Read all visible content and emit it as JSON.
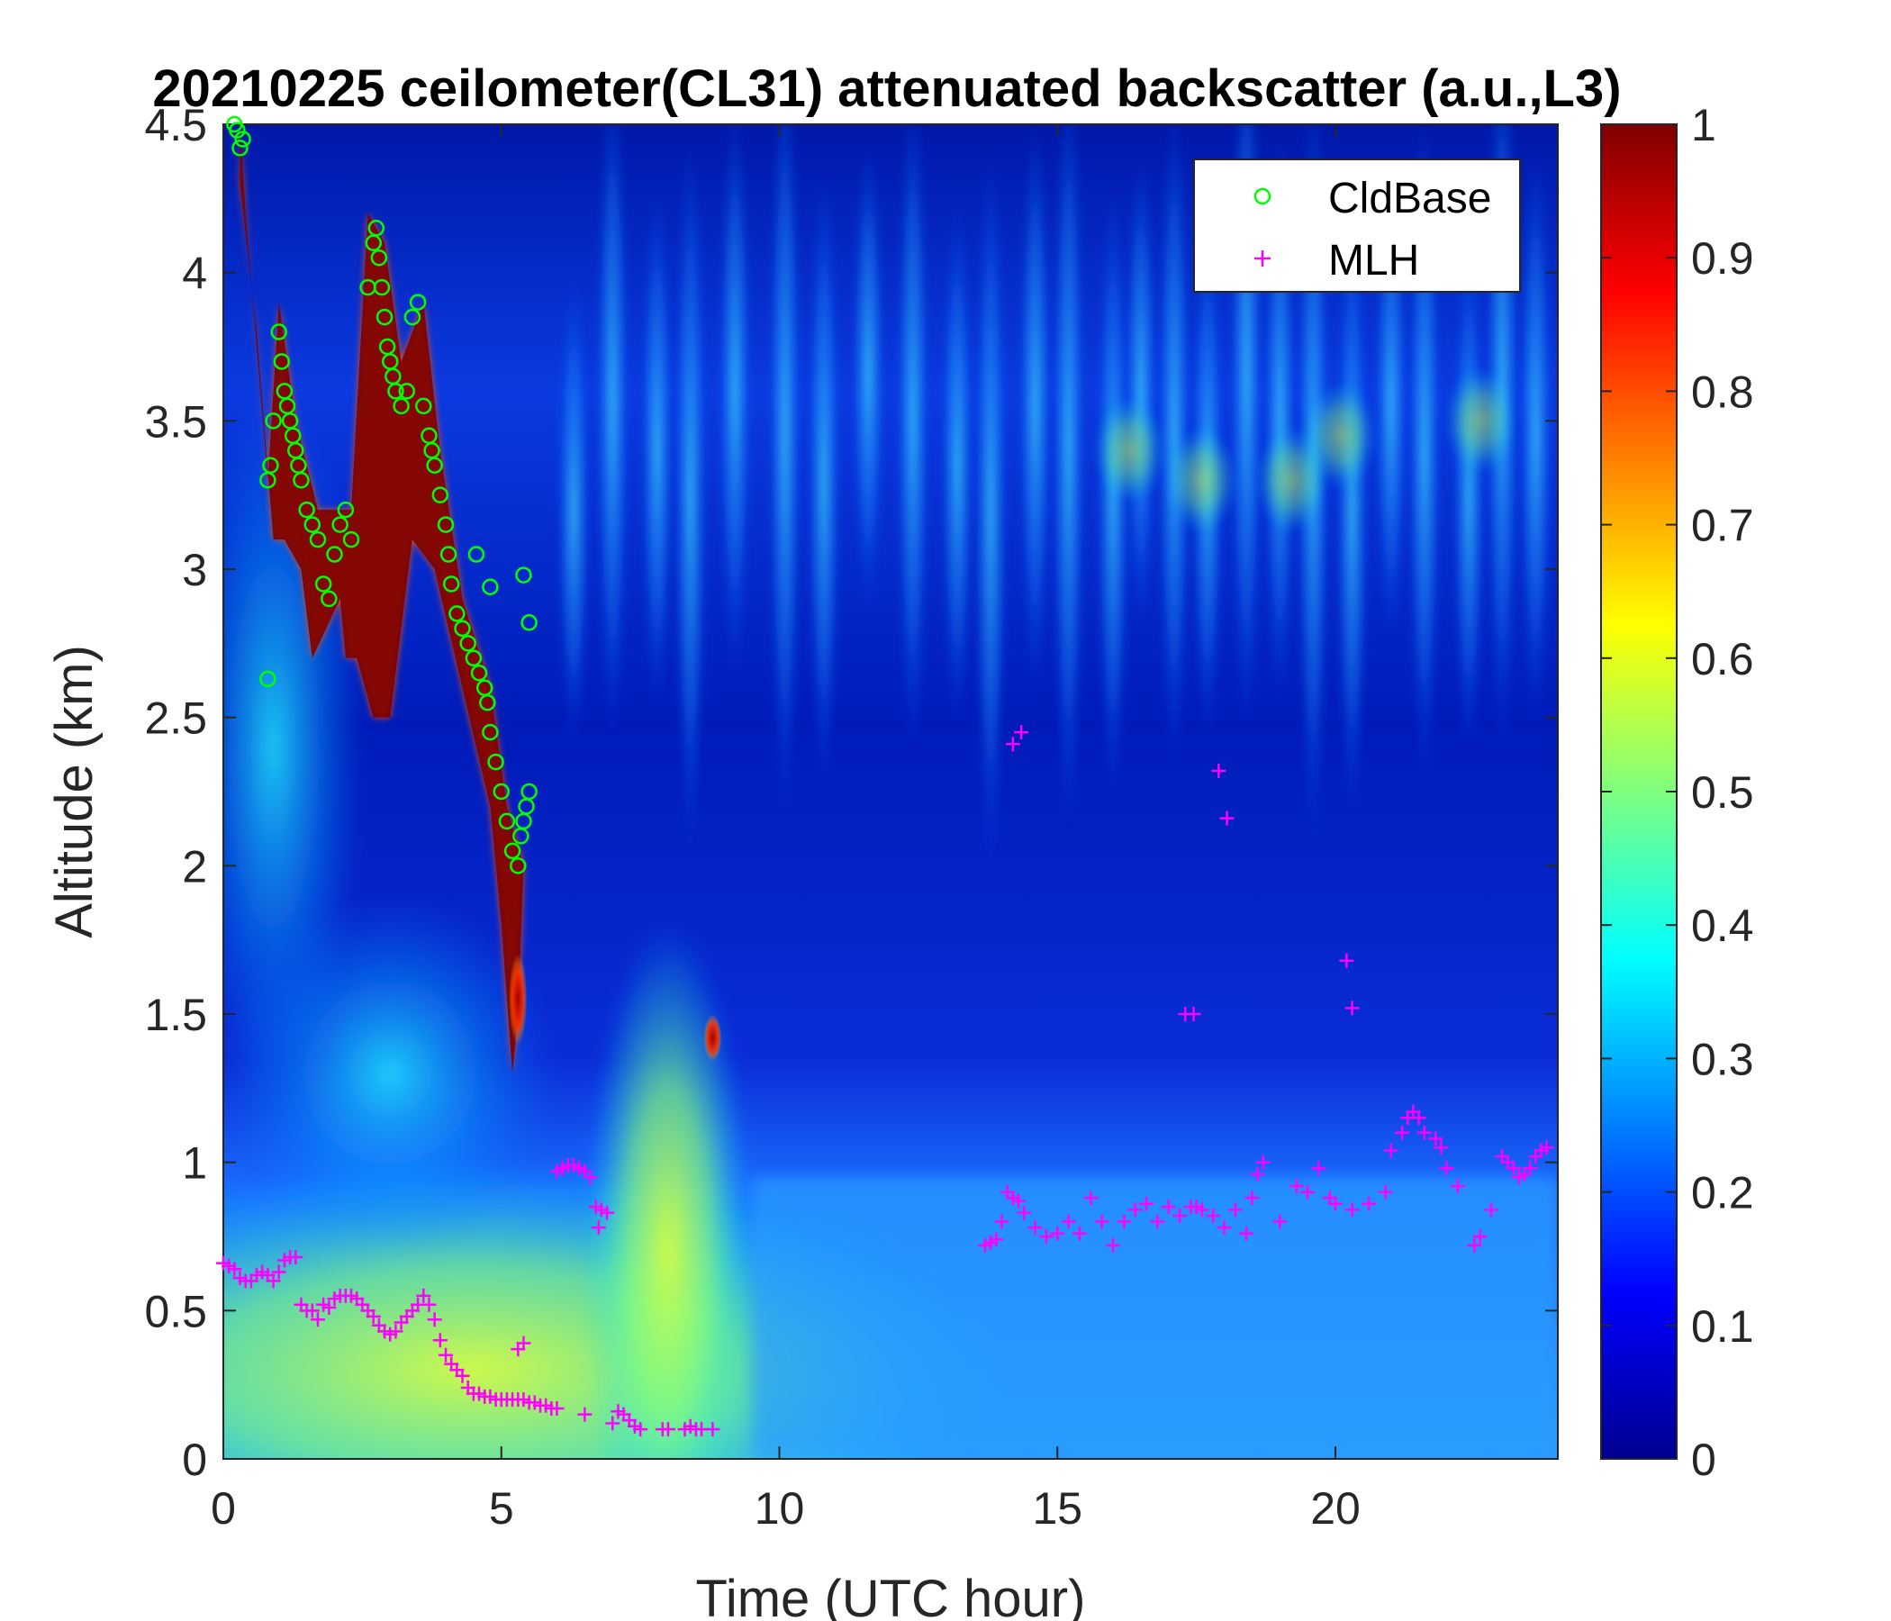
{
  "chart_data": {
    "type": "heatmap",
    "title": "20210225 ceilometer(CL31) attenuated backscatter (a.u.,L3)",
    "xlabel": "Time (UTC hour)",
    "ylabel": "Altitude (km)",
    "xlim": [
      0,
      24
    ],
    "ylim": [
      0,
      4.5
    ],
    "xticks": [
      "0",
      "5",
      "10",
      "15",
      "20"
    ],
    "yticks": [
      "0",
      "0.5",
      "1",
      "1.5",
      "2",
      "2.5",
      "3",
      "3.5",
      "4",
      "4.5"
    ],
    "colorbar": {
      "colormap": "jet",
      "range": [
        0,
        1
      ],
      "ticks": [
        "0",
        "0.1",
        "0.2",
        "0.3",
        "0.4",
        "0.5",
        "0.6",
        "0.7",
        "0.8",
        "0.9",
        "1"
      ]
    },
    "legend": {
      "placement": "top-right",
      "entries": [
        {
          "label": "CldBase",
          "marker": "circle",
          "color": "#00ff00"
        },
        {
          "label": "MLH",
          "marker": "plus",
          "color": "#ff00ff"
        }
      ]
    },
    "series": [
      {
        "name": "CldBase",
        "marker": "circle",
        "color": "#00ff00",
        "x": [
          0.2,
          0.25,
          0.3,
          0.35,
          0.8,
          0.85,
          0.9,
          1.0,
          1.05,
          1.1,
          1.15,
          1.2,
          1.25,
          1.3,
          1.35,
          1.4,
          1.5,
          1.6,
          1.7,
          1.8,
          1.9,
          2.0,
          2.1,
          2.2,
          2.3,
          2.6,
          2.7,
          2.75,
          2.8,
          2.85,
          2.9,
          2.95,
          3.0,
          3.05,
          3.1,
          3.2,
          3.3,
          3.4,
          3.5,
          3.6,
          3.7,
          3.75,
          3.8,
          3.9,
          4.0,
          4.05,
          4.1,
          4.2,
          4.3,
          4.4,
          4.5,
          4.6,
          4.7,
          4.75,
          4.8,
          4.9,
          5.0,
          5.1,
          5.2,
          5.3,
          5.35,
          5.4,
          5.45,
          5.5,
          0.8,
          4.55,
          4.8,
          5.4,
          5.5
        ],
        "y": [
          4.5,
          4.48,
          4.42,
          4.45,
          3.3,
          3.35,
          3.5,
          3.8,
          3.7,
          3.6,
          3.55,
          3.5,
          3.45,
          3.4,
          3.35,
          3.3,
          3.2,
          3.15,
          3.1,
          2.95,
          2.9,
          3.05,
          3.15,
          3.2,
          3.1,
          3.95,
          4.1,
          4.15,
          4.05,
          3.95,
          3.85,
          3.75,
          3.7,
          3.65,
          3.6,
          3.55,
          3.6,
          3.85,
          3.9,
          3.55,
          3.45,
          3.4,
          3.35,
          3.25,
          3.15,
          3.05,
          2.95,
          2.85,
          2.8,
          2.75,
          2.7,
          2.65,
          2.6,
          2.55,
          2.45,
          2.35,
          2.25,
          2.15,
          2.05,
          2.0,
          2.1,
          2.15,
          2.2,
          2.25,
          2.63,
          3.05,
          2.94,
          2.98,
          2.82
        ]
      },
      {
        "name": "MLH",
        "marker": "plus",
        "color": "#ff00ff",
        "x": [
          0.0,
          0.1,
          0.2,
          0.3,
          0.4,
          0.5,
          0.6,
          0.7,
          0.8,
          0.9,
          1.0,
          1.1,
          1.2,
          1.3,
          1.4,
          1.5,
          1.6,
          1.7,
          1.8,
          1.9,
          2.0,
          2.1,
          2.2,
          2.3,
          2.4,
          2.5,
          2.6,
          2.7,
          2.8,
          2.9,
          3.0,
          3.1,
          3.2,
          3.3,
          3.4,
          3.5,
          3.6,
          3.7,
          3.8,
          3.9,
          4.0,
          4.1,
          4.2,
          4.3,
          4.4,
          4.5,
          4.6,
          4.7,
          4.8,
          4.9,
          5.0,
          5.1,
          5.2,
          5.3,
          5.4,
          5.5,
          5.6,
          5.7,
          5.8,
          5.9,
          6.0,
          6.5,
          7.0,
          7.1,
          7.2,
          7.3,
          7.4,
          7.5,
          7.9,
          8.0,
          8.3,
          8.4,
          8.5,
          8.6,
          8.8,
          5.3,
          5.4,
          6.0,
          6.1,
          6.2,
          6.3,
          6.4,
          6.5,
          6.6,
          6.7,
          6.8,
          6.9,
          6.75,
          13.7,
          13.8,
          13.9,
          14.0,
          14.1,
          14.2,
          14.3,
          14.4,
          14.6,
          14.8,
          15.0,
          15.2,
          15.4,
          15.6,
          15.8,
          16.0,
          16.2,
          16.4,
          16.6,
          16.8,
          17.0,
          17.2,
          17.4,
          17.5,
          17.6,
          17.8,
          18.0,
          18.2,
          18.4,
          18.5,
          18.6,
          18.7,
          19.0,
          19.3,
          19.5,
          19.7,
          19.9,
          20.0,
          20.3,
          20.6,
          20.9,
          21.0,
          21.2,
          21.3,
          21.4,
          21.5,
          21.6,
          21.8,
          21.9,
          22.0,
          22.2,
          22.5,
          22.6,
          22.8,
          23.0,
          23.1,
          23.2,
          23.3,
          23.4,
          23.5,
          23.6,
          23.7,
          23.8,
          14.2,
          14.35,
          17.3,
          17.45,
          17.9,
          18.05,
          20.2,
          20.3
        ],
        "y": [
          0.66,
          0.65,
          0.64,
          0.61,
          0.6,
          0.6,
          0.62,
          0.63,
          0.62,
          0.6,
          0.63,
          0.67,
          0.68,
          0.68,
          0.52,
          0.5,
          0.5,
          0.47,
          0.52,
          0.51,
          0.54,
          0.55,
          0.55,
          0.55,
          0.54,
          0.52,
          0.5,
          0.48,
          0.45,
          0.43,
          0.42,
          0.43,
          0.46,
          0.48,
          0.5,
          0.52,
          0.55,
          0.52,
          0.47,
          0.4,
          0.35,
          0.32,
          0.3,
          0.28,
          0.24,
          0.22,
          0.22,
          0.21,
          0.21,
          0.2,
          0.2,
          0.2,
          0.2,
          0.2,
          0.2,
          0.19,
          0.19,
          0.18,
          0.18,
          0.17,
          0.17,
          0.15,
          0.12,
          0.16,
          0.15,
          0.13,
          0.11,
          0.1,
          0.1,
          0.1,
          0.1,
          0.11,
          0.1,
          0.1,
          0.1,
          0.37,
          0.39,
          0.97,
          0.98,
          0.99,
          0.99,
          0.98,
          0.97,
          0.95,
          0.85,
          0.84,
          0.83,
          0.78,
          0.72,
          0.73,
          0.74,
          0.8,
          0.9,
          0.88,
          0.87,
          0.83,
          0.78,
          0.75,
          0.76,
          0.8,
          0.76,
          0.88,
          0.8,
          0.72,
          0.8,
          0.84,
          0.86,
          0.8,
          0.85,
          0.82,
          0.85,
          0.85,
          0.84,
          0.82,
          0.78,
          0.84,
          0.76,
          0.88,
          0.96,
          1.0,
          0.8,
          0.92,
          0.9,
          0.98,
          0.88,
          0.86,
          0.84,
          0.86,
          0.9,
          1.04,
          1.1,
          1.15,
          1.17,
          1.15,
          1.1,
          1.08,
          1.05,
          0.98,
          0.92,
          0.72,
          0.75,
          0.84,
          1.02,
          1.0,
          0.98,
          0.95,
          0.96,
          0.98,
          1.02,
          1.04,
          1.05,
          2.41,
          2.45,
          1.5,
          1.5,
          2.32,
          2.16,
          1.68,
          1.52
        ]
      }
    ]
  }
}
